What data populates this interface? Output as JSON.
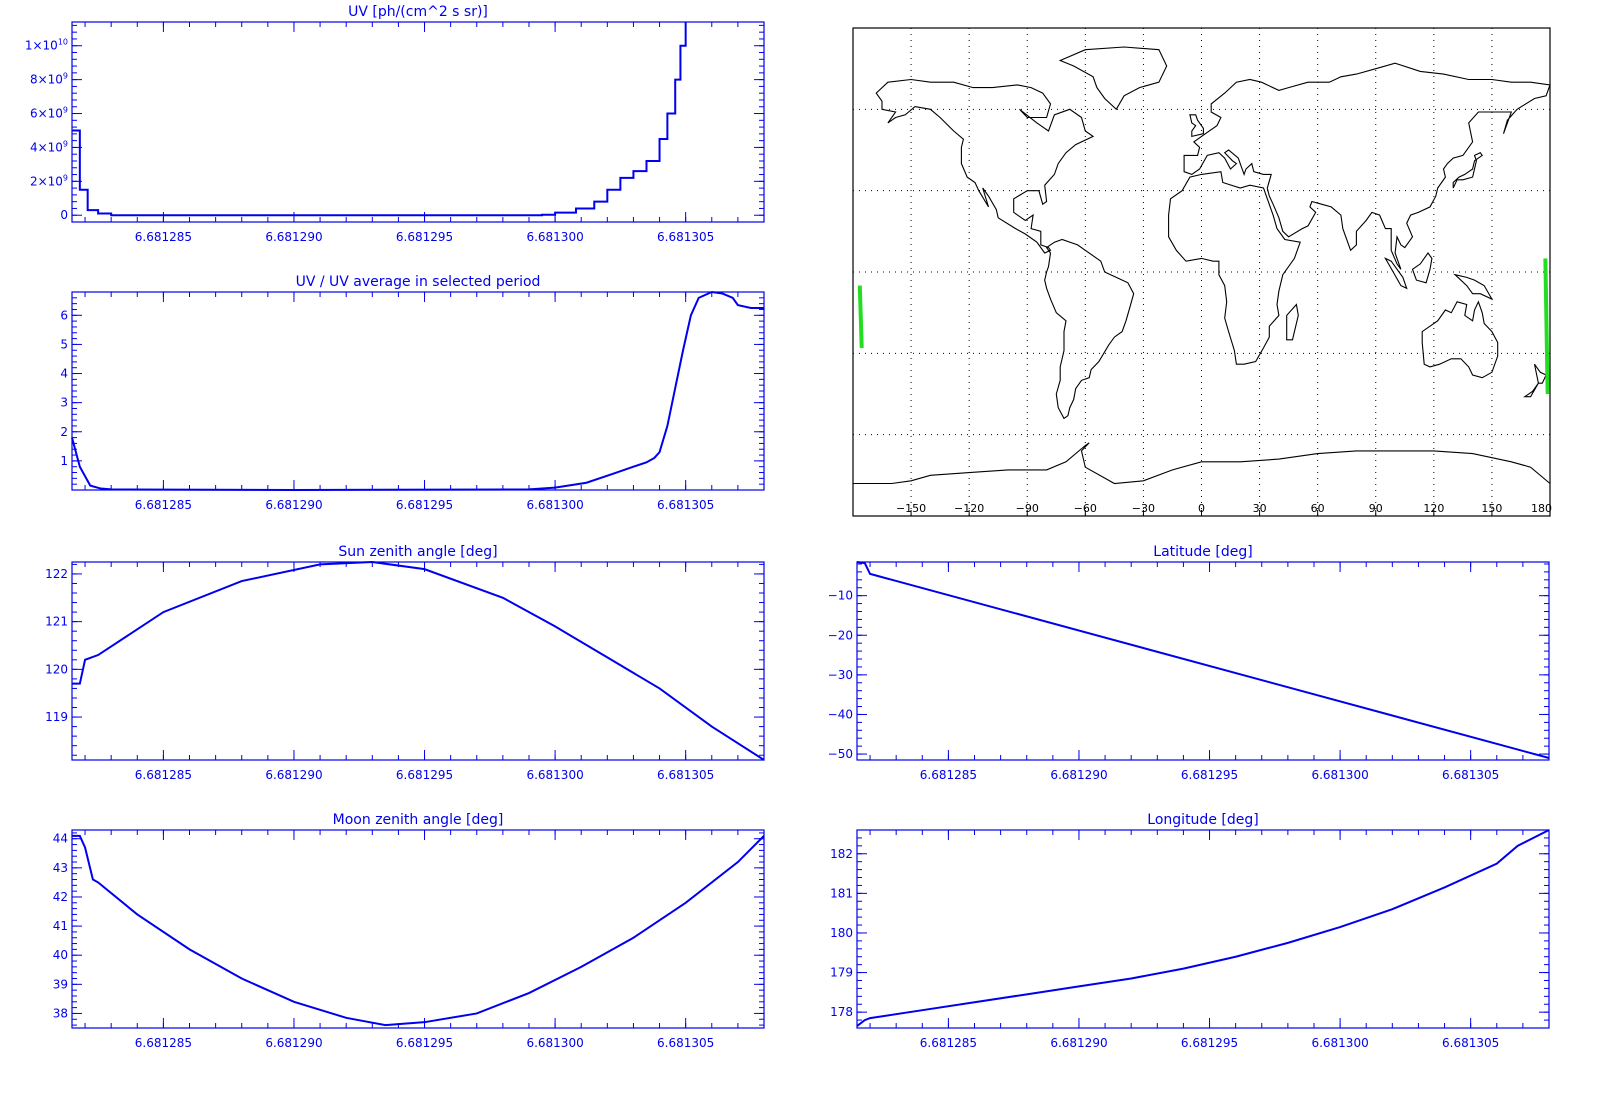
{
  "colors": {
    "plot": "#0000ee",
    "map": "#000000",
    "track": "#22dd22",
    "grid": "#000000"
  },
  "chart_data": [
    {
      "id": "uv",
      "type": "line",
      "step": true,
      "title": "UV [ph/(cm^2 s sr)]",
      "xlim": [
        6.6812815,
        6.681308
      ],
      "ylim": [
        -400000000,
        11400000000
      ],
      "xticks": [
        6.681285,
        6.68129,
        6.681295,
        6.6813,
        6.681305
      ],
      "xtick_labels": [
        "6.681285",
        "6.681290",
        "6.681295",
        "6.681300",
        "6.681305"
      ],
      "yticks": [
        0,
        2000000000,
        4000000000,
        6000000000,
        8000000000,
        10000000000
      ],
      "ytick_labels": [
        {
          "main": "0",
          "exp": ""
        },
        {
          "main": "2×10",
          "exp": "9"
        },
        {
          "main": "4×10",
          "exp": "9"
        },
        {
          "main": "6×10",
          "exp": "9"
        },
        {
          "main": "8×10",
          "exp": "9"
        },
        {
          "main": "1×10",
          "exp": "10"
        }
      ],
      "series": [
        {
          "x": [
            6.6812815,
            6.6812818,
            6.6812821,
            6.6812825,
            6.681283,
            6.68129,
            6.681298,
            6.6812995,
            6.6813,
            6.6813008,
            6.6813015,
            6.681302,
            6.6813025,
            6.681303,
            6.6813035,
            6.681304,
            6.6813043,
            6.6813046,
            6.6813048,
            6.681305
          ],
          "y": [
            5000000000,
            1500000000,
            300000000,
            100000000,
            0,
            0,
            0,
            30000000,
            150000000,
            400000000,
            800000000,
            1500000000,
            2200000000,
            2600000000,
            3200000000,
            4500000000,
            6000000000,
            8000000000,
            10000000000,
            11400000000
          ]
        }
      ]
    },
    {
      "id": "ratio",
      "type": "line",
      "title": "UV / UV average in selected period",
      "xlim": [
        6.6812815,
        6.681308
      ],
      "ylim": [
        0,
        6.8
      ],
      "xticks": [
        6.681285,
        6.68129,
        6.681295,
        6.6813,
        6.681305
      ],
      "xtick_labels": [
        "6.681285",
        "6.681290",
        "6.681295",
        "6.681300",
        "6.681305"
      ],
      "yticks": [
        1,
        2,
        3,
        4,
        5,
        6
      ],
      "ytick_labels": [
        {
          "main": "1",
          "exp": ""
        },
        {
          "main": "2",
          "exp": ""
        },
        {
          "main": "3",
          "exp": ""
        },
        {
          "main": "4",
          "exp": ""
        },
        {
          "main": "5",
          "exp": ""
        },
        {
          "main": "6",
          "exp": ""
        }
      ],
      "series": [
        {
          "x": [
            6.6812815,
            6.6812818,
            6.6812822,
            6.6812826,
            6.681283,
            6.68129,
            6.681299,
            6.6813,
            6.6813012,
            6.6813022,
            6.681303,
            6.6813035,
            6.6813038,
            6.681304,
            6.6813043,
            6.6813046,
            6.6813049,
            6.6813052,
            6.6813055,
            6.681306,
            6.6813064,
            6.6813068,
            6.681307,
            6.6813075,
            6.681308
          ],
          "y": [
            1.8,
            0.8,
            0.15,
            0.05,
            0.02,
            0.0,
            0.02,
            0.08,
            0.25,
            0.55,
            0.8,
            0.95,
            1.1,
            1.3,
            2.2,
            3.5,
            4.8,
            6.0,
            6.6,
            6.8,
            6.75,
            6.6,
            6.35,
            6.25,
            6.25
          ]
        }
      ]
    },
    {
      "id": "sun",
      "type": "line",
      "title": "Sun zenith angle [deg]",
      "xlim": [
        6.6812815,
        6.681308
      ],
      "ylim": [
        118.1,
        122.25
      ],
      "xticks": [
        6.681285,
        6.68129,
        6.681295,
        6.6813,
        6.681305
      ],
      "xtick_labels": [
        "6.681285",
        "6.681290",
        "6.681295",
        "6.681300",
        "6.681305"
      ],
      "yticks": [
        119,
        120,
        121,
        122
      ],
      "ytick_labels": [
        {
          "main": "119",
          "exp": ""
        },
        {
          "main": "120",
          "exp": ""
        },
        {
          "main": "121",
          "exp": ""
        },
        {
          "main": "122",
          "exp": ""
        }
      ],
      "series": [
        {
          "x": [
            6.6812815,
            6.6812818,
            6.681282,
            6.6812825,
            6.681285,
            6.681288,
            6.681291,
            6.681293,
            6.681295,
            6.681298,
            6.6813,
            6.681302,
            6.681304,
            6.681306,
            6.681308
          ],
          "y": [
            119.7,
            119.7,
            120.2,
            120.3,
            121.2,
            121.85,
            122.2,
            122.25,
            122.1,
            121.5,
            120.9,
            120.25,
            119.6,
            118.8,
            118.1
          ]
        }
      ]
    },
    {
      "id": "lat",
      "type": "line",
      "title": "Latitude [deg]",
      "xlim": [
        6.6812815,
        6.681308
      ],
      "ylim": [
        -51.5,
        -1.5
      ],
      "xticks": [
        6.681285,
        6.68129,
        6.681295,
        6.6813,
        6.681305
      ],
      "xtick_labels": [
        "6.681285",
        "6.681290",
        "6.681295",
        "6.681300",
        "6.681305"
      ],
      "yticks": [
        -50,
        -40,
        -30,
        -20,
        -10
      ],
      "ytick_labels": [
        {
          "main": "−50",
          "exp": ""
        },
        {
          "main": "−40",
          "exp": ""
        },
        {
          "main": "−30",
          "exp": ""
        },
        {
          "main": "−20",
          "exp": ""
        },
        {
          "main": "−10",
          "exp": ""
        }
      ],
      "series": [
        {
          "x": [
            6.6812815,
            6.6812818,
            6.681282,
            6.681308
          ],
          "y": [
            -1.5,
            -1.8,
            -4.5,
            -51.0
          ]
        }
      ]
    },
    {
      "id": "moon",
      "type": "line",
      "title": "Moon zenith angle [deg]",
      "xlim": [
        6.6812815,
        6.681308
      ],
      "ylim": [
        37.5,
        44.3
      ],
      "xticks": [
        6.681285,
        6.68129,
        6.681295,
        6.6813,
        6.681305
      ],
      "xtick_labels": [
        "6.681285",
        "6.681290",
        "6.681295",
        "6.681300",
        "6.681305"
      ],
      "yticks": [
        38,
        39,
        40,
        41,
        42,
        43,
        44
      ],
      "ytick_labels": [
        {
          "main": "38",
          "exp": ""
        },
        {
          "main": "39",
          "exp": ""
        },
        {
          "main": "40",
          "exp": ""
        },
        {
          "main": "41",
          "exp": ""
        },
        {
          "main": "42",
          "exp": ""
        },
        {
          "main": "43",
          "exp": ""
        },
        {
          "main": "44",
          "exp": ""
        }
      ],
      "series": [
        {
          "x": [
            6.6812815,
            6.6812818,
            6.681282,
            6.6812823,
            6.6812825,
            6.681284,
            6.681286,
            6.681288,
            6.68129,
            6.681292,
            6.6812935,
            6.681295,
            6.681297,
            6.681299,
            6.681301,
            6.681303,
            6.681305,
            6.681307,
            6.681308
          ],
          "y": [
            44.1,
            44.1,
            43.7,
            42.6,
            42.5,
            41.4,
            40.2,
            39.2,
            38.4,
            37.85,
            37.6,
            37.7,
            38.0,
            38.7,
            39.6,
            40.6,
            41.8,
            43.2,
            44.1
          ]
        }
      ]
    },
    {
      "id": "lon",
      "type": "line",
      "title": "Longitude [deg]",
      "xlim": [
        6.6812815,
        6.681308
      ],
      "ylim": [
        177.6,
        182.6
      ],
      "xticks": [
        6.681285,
        6.68129,
        6.681295,
        6.6813,
        6.681305
      ],
      "xtick_labels": [
        "6.681285",
        "6.681290",
        "6.681295",
        "6.681300",
        "6.681305"
      ],
      "yticks": [
        178,
        179,
        180,
        181,
        182
      ],
      "ytick_labels": [
        {
          "main": "178",
          "exp": ""
        },
        {
          "main": "179",
          "exp": ""
        },
        {
          "main": "180",
          "exp": ""
        },
        {
          "main": "181",
          "exp": ""
        },
        {
          "main": "182",
          "exp": ""
        }
      ],
      "series": [
        {
          "x": [
            6.6812815,
            6.6812818,
            6.681282,
            6.681284,
            6.681286,
            6.681288,
            6.68129,
            6.681292,
            6.681294,
            6.681296,
            6.681298,
            6.6813,
            6.681302,
            6.681304,
            6.681306,
            6.6813068,
            6.681308
          ],
          "y": [
            177.65,
            177.8,
            177.85,
            178.05,
            178.25,
            178.45,
            178.65,
            178.85,
            179.1,
            179.4,
            179.75,
            180.15,
            180.6,
            181.15,
            181.75,
            182.2,
            182.6
          ]
        }
      ]
    }
  ],
  "map": {
    "xticks": [
      -150,
      -120,
      -90,
      -60,
      -30,
      0,
      30,
      60,
      90,
      120,
      150,
      180
    ],
    "xtick_labels": [
      "−150",
      "−120",
      "−90",
      "−60",
      "−30",
      "0",
      "30",
      "60",
      "90",
      "120",
      "150",
      "180"
    ],
    "lon_range": [
      -180,
      180
    ],
    "lat_range": [
      -90,
      90
    ],
    "track_segments": [
      [
        [
          -176.5,
          -5
        ],
        [
          -175.5,
          -28
        ]
      ],
      [
        [
          177.6,
          5
        ],
        [
          178.8,
          -45
        ]
      ]
    ]
  }
}
